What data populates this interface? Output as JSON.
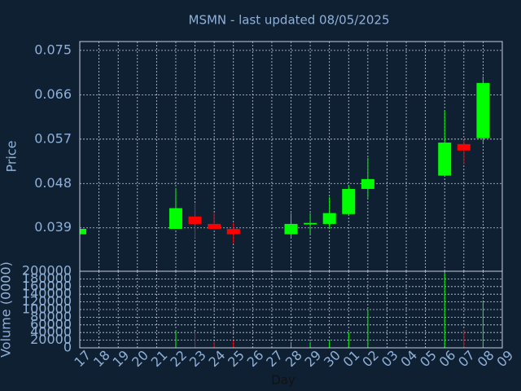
{
  "chart_data": {
    "type": "candlestick",
    "title": "MSMN - last updated 08/05/2025",
    "y_label": "Price",
    "y2_label": "Volume (0000)",
    "x_label": "Day",
    "categories": [
      "17",
      "18",
      "19",
      "20",
      "21",
      "22",
      "23",
      "24",
      "25",
      "26",
      "27",
      "28",
      "29",
      "30",
      "01",
      "02",
      "03",
      "04",
      "05",
      "06",
      "07",
      "08",
      "09"
    ],
    "open": [
      0.0377,
      null,
      null,
      null,
      null,
      0.0388,
      0.0413,
      0.0398,
      0.0388,
      null,
      null,
      0.0377,
      0.0397,
      0.0398,
      0.0418,
      0.0469,
      null,
      null,
      null,
      0.0496,
      0.056,
      0.0572,
      null
    ],
    "high": [
      0.0388,
      null,
      null,
      null,
      null,
      0.0471,
      0.044,
      0.042,
      0.04,
      null,
      null,
      0.042,
      0.042,
      0.0453,
      0.0476,
      0.0532,
      null,
      null,
      null,
      0.0628,
      0.0568,
      0.0697,
      null
    ],
    "low": [
      0.0377,
      null,
      null,
      null,
      null,
      0.0388,
      0.0369,
      0.0387,
      0.0359,
      null,
      null,
      0.0369,
      0.0377,
      0.0388,
      0.0418,
      0.0451,
      null,
      null,
      null,
      0.0496,
      0.0519,
      0.0562,
      null
    ],
    "close": [
      0.0388,
      null,
      null,
      null,
      null,
      0.043,
      0.0398,
      0.0388,
      0.0377,
      null,
      null,
      0.0398,
      0.04,
      0.042,
      0.0469,
      0.0489,
      null,
      null,
      null,
      0.0563,
      0.0547,
      0.0684,
      null
    ],
    "volume": [
      null,
      null,
      null,
      null,
      null,
      46800,
      40400,
      15000,
      19000,
      null,
      null,
      15000,
      15000,
      19000,
      40400,
      100000,
      null,
      null,
      null,
      196000,
      46800,
      121000,
      null
    ],
    "up_color": "#00ff00",
    "down_color": "#ff0000",
    "title_color": "#ffff00",
    "ylim": [
      0.0302,
      0.0768
    ],
    "yticks": [
      0.039,
      0.048,
      0.057,
      0.066,
      0.075
    ],
    "y2lim": [
      0,
      200000
    ],
    "y2ticks": [
      0,
      20000,
      40000,
      60000,
      80000,
      100000,
      120000,
      140000,
      160000,
      180000,
      200000
    ],
    "grid": true
  }
}
